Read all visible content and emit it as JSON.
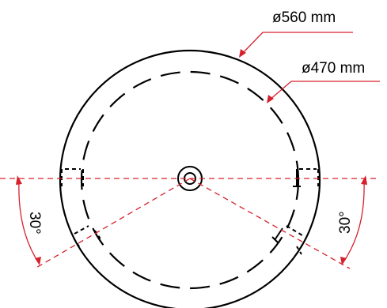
{
  "dimensions": {
    "outer_diameter": "ø560 mm",
    "inner_diameter": "ø470 mm",
    "left_angle": "30°",
    "right_angle": "30°"
  },
  "colors": {
    "outline": "#000000",
    "dimension": "#d6202b",
    "background": "#ffffff"
  }
}
